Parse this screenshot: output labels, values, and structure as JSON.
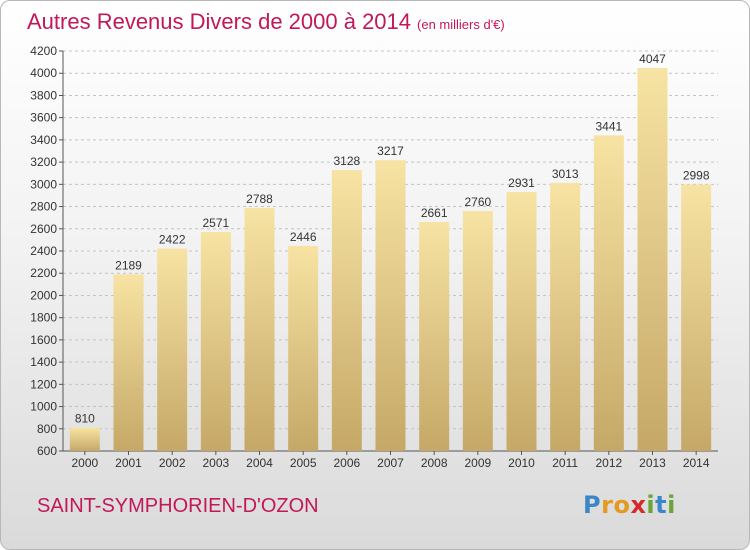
{
  "header": {
    "title": "Autres Revenus Divers de 2000 à 2014",
    "unit": "(en milliers d'€)"
  },
  "footer": {
    "city": "SAINT-SYMPHORIEN-D'OZON",
    "logo_letters": [
      {
        "ch": "P",
        "color": "#3a86c8"
      },
      {
        "ch": "r",
        "color": "#e39a1f"
      },
      {
        "ch": "o",
        "color": "#e39a1f"
      },
      {
        "ch": "x",
        "color": "#d42a2a"
      },
      {
        "ch": "i",
        "color": "#6aa53a"
      },
      {
        "ch": "t",
        "color": "#3a86c8"
      },
      {
        "ch": "i",
        "color": "#6aa53a"
      }
    ]
  },
  "chart_data": {
    "type": "bar",
    "categories": [
      "2000",
      "2001",
      "2002",
      "2003",
      "2004",
      "2005",
      "2006",
      "2007",
      "2008",
      "2009",
      "2010",
      "2011",
      "2012",
      "2013",
      "2014"
    ],
    "values": [
      810,
      2189,
      2422,
      2571,
      2788,
      2446,
      3128,
      3217,
      2661,
      2760,
      2931,
      3013,
      3441,
      4047,
      2998
    ],
    "ylim": [
      600,
      4200
    ],
    "yticks": [
      600,
      800,
      1000,
      1200,
      1400,
      1600,
      1800,
      2000,
      2200,
      2400,
      2600,
      2800,
      3000,
      3200,
      3400,
      3600,
      3800,
      4000,
      4200
    ],
    "grid": true,
    "bar_color_light": "#f7e3a3",
    "bar_color_dark": "#c5a868"
  }
}
